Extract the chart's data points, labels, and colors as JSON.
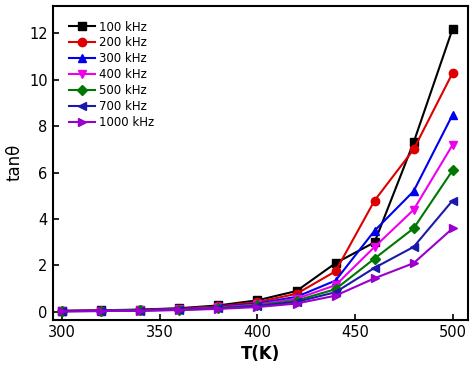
{
  "xlabel": "T(K)",
  "ylabel": "tanθ",
  "xlim": [
    295,
    508
  ],
  "ylim": [
    -0.35,
    13.2
  ],
  "xticks": [
    300,
    350,
    400,
    450,
    500
  ],
  "yticks": [
    0,
    2,
    4,
    6,
    8,
    10,
    12
  ],
  "series": [
    {
      "label": "100 kHz",
      "color": "#000000",
      "marker": "s",
      "markersize": 6,
      "x": [
        300,
        320,
        340,
        360,
        380,
        400,
        420,
        440,
        460,
        480,
        500
      ],
      "y": [
        0.05,
        0.07,
        0.1,
        0.16,
        0.28,
        0.5,
        0.9,
        2.1,
        3.0,
        7.3,
        12.2
      ]
    },
    {
      "label": "200 kHz",
      "color": "#dd0000",
      "marker": "o",
      "markersize": 6,
      "x": [
        300,
        320,
        340,
        360,
        380,
        400,
        420,
        440,
        460,
        480,
        500
      ],
      "y": [
        0.04,
        0.06,
        0.09,
        0.14,
        0.24,
        0.42,
        0.78,
        1.75,
        4.8,
        7.0,
        10.3
      ]
    },
    {
      "label": "300 kHz",
      "color": "#0000ee",
      "marker": "^",
      "markersize": 6,
      "x": [
        300,
        320,
        340,
        360,
        380,
        400,
        420,
        440,
        460,
        480,
        500
      ],
      "y": [
        0.04,
        0.05,
        0.08,
        0.12,
        0.21,
        0.36,
        0.65,
        1.35,
        3.5,
        5.2,
        8.5
      ]
    },
    {
      "label": "400 kHz",
      "color": "#ee00ee",
      "marker": "v",
      "markersize": 6,
      "x": [
        300,
        320,
        340,
        360,
        380,
        400,
        420,
        440,
        460,
        480,
        500
      ],
      "y": [
        0.035,
        0.05,
        0.07,
        0.11,
        0.19,
        0.32,
        0.57,
        1.15,
        2.8,
        4.4,
        7.2
      ]
    },
    {
      "label": "500 kHz",
      "color": "#007700",
      "marker": "D",
      "markersize": 5,
      "x": [
        300,
        320,
        340,
        360,
        380,
        400,
        420,
        440,
        460,
        480,
        500
      ],
      "y": [
        0.03,
        0.045,
        0.065,
        0.1,
        0.17,
        0.28,
        0.49,
        0.98,
        2.3,
        3.6,
        6.1
      ]
    },
    {
      "label": "700 kHz",
      "color": "#1a1aaa",
      "marker": "<",
      "markersize": 6,
      "x": [
        300,
        320,
        340,
        360,
        380,
        400,
        420,
        440,
        460,
        480,
        500
      ],
      "y": [
        0.03,
        0.04,
        0.06,
        0.09,
        0.15,
        0.25,
        0.43,
        0.85,
        1.9,
        2.8,
        4.8
      ]
    },
    {
      "label": "1000 kHz",
      "color": "#9900cc",
      "marker": ">",
      "markersize": 6,
      "x": [
        300,
        320,
        340,
        360,
        380,
        400,
        420,
        440,
        460,
        480,
        500
      ],
      "y": [
        0.025,
        0.035,
        0.05,
        0.08,
        0.13,
        0.21,
        0.36,
        0.7,
        1.45,
        2.1,
        3.6
      ]
    }
  ],
  "background_color": "#ffffff",
  "figsize": [
    4.74,
    3.69
  ],
  "dpi": 100
}
